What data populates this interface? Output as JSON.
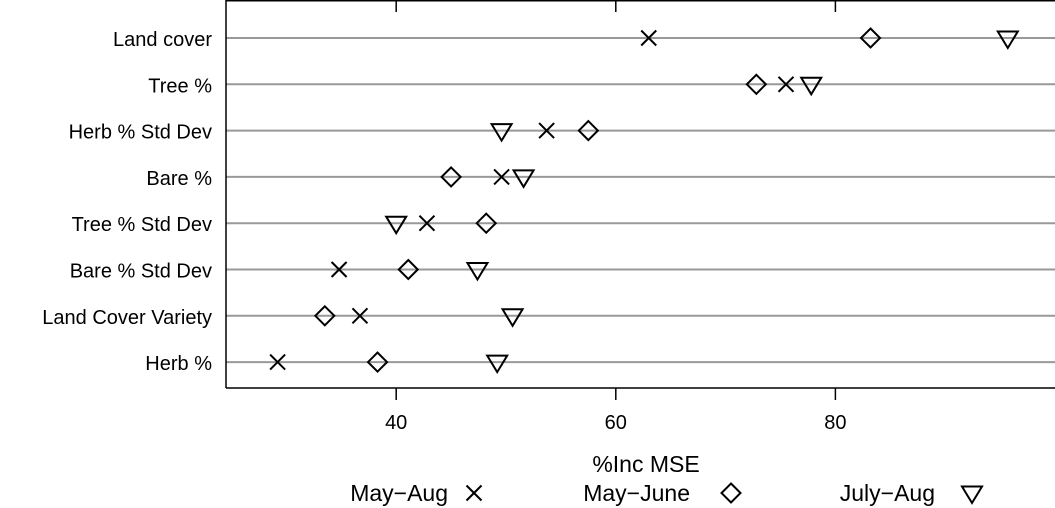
{
  "chart_data": {
    "type": "scatter",
    "categories": [
      "Land cover",
      "Tree %",
      "Herb % Std Dev",
      "Bare %",
      "Tree % Std Dev",
      "Bare % Std Dev",
      "Land Cover Variety",
      "Herb %"
    ],
    "xlabel": "%Inc MSE",
    "xlim": [
      24.5,
      100
    ],
    "xticks": [
      40,
      60,
      80
    ],
    "grid": true,
    "legend_placement": "bottom",
    "series": [
      {
        "name": "May−Aug",
        "marker": "cross",
        "values": [
          63,
          75.5,
          53.7,
          49.6,
          42.8,
          34.8,
          36.7,
          29.2
        ]
      },
      {
        "name": "May−June",
        "marker": "diamond",
        "values": [
          83.2,
          72.8,
          57.5,
          45,
          48.2,
          41.1,
          33.5,
          38.3
        ]
      },
      {
        "name": "July−Aug",
        "marker": "triangle-down",
        "values": [
          95.7,
          77.8,
          49.6,
          51.6,
          40,
          47.4,
          50.6,
          49.2
        ]
      }
    ],
    "colors": {
      "gridline": "#999999",
      "axis": "#000000",
      "marker": "#000000"
    }
  }
}
